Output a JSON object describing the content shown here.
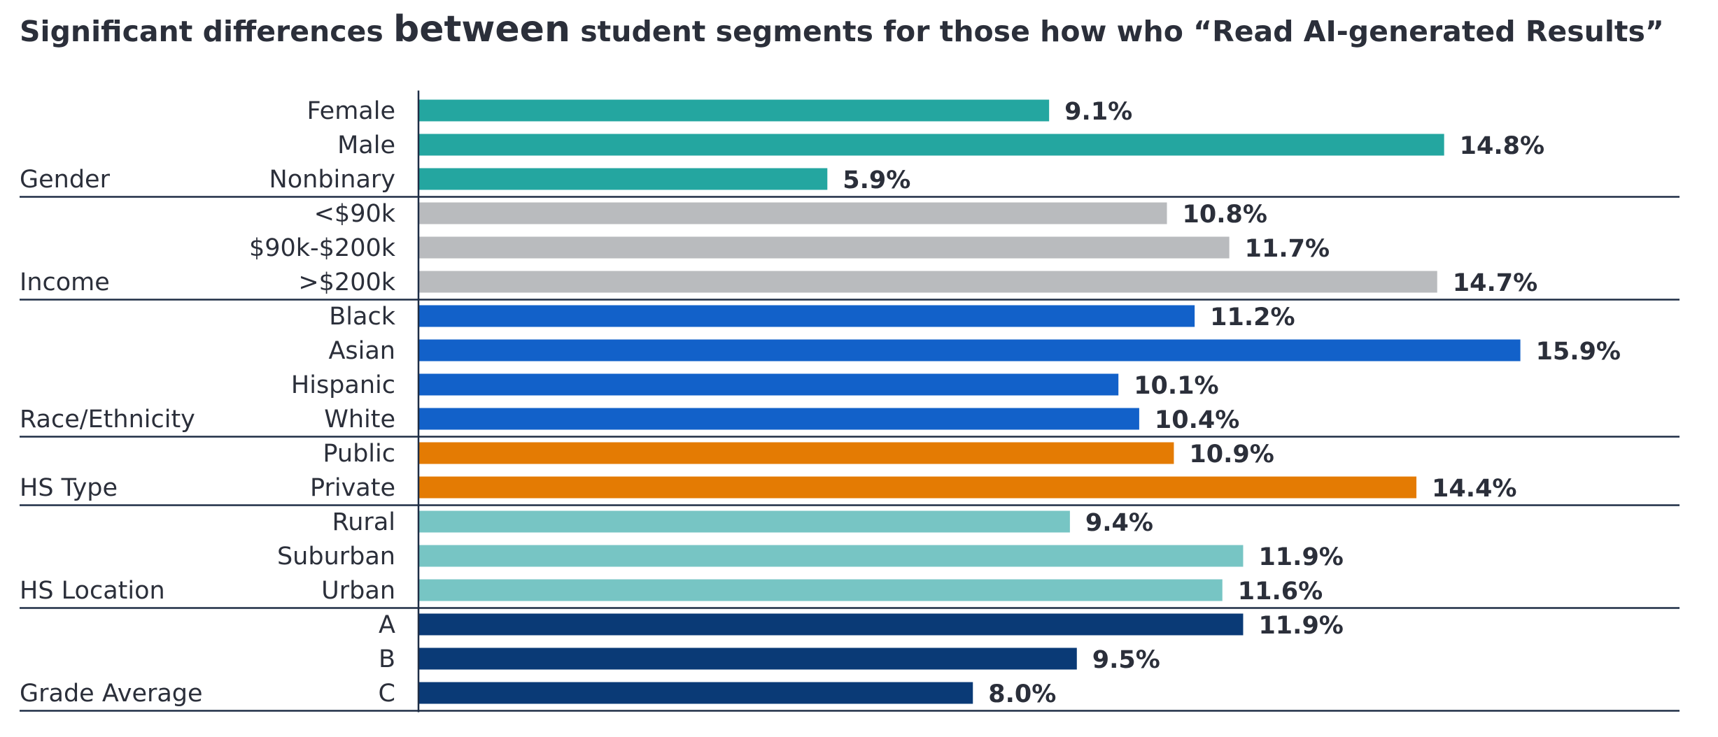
{
  "title": {
    "part1": "Significant differences ",
    "part2": "between",
    "part3": " student segments for those how who  “Read AI-generated Results”"
  },
  "chart_data": {
    "type": "bar",
    "orientation": "horizontal",
    "title": "Significant differences between student segments for those how who  “Read AI-generated Results”",
    "xlim": [
      0,
      16.5
    ],
    "grid": false,
    "value_format": "percent",
    "groups": [
      {
        "name": "Gender",
        "color": "#24a6a0",
        "categories": [
          "Female",
          "Male",
          "Nonbinary"
        ],
        "values": [
          9.1,
          14.8,
          5.9
        ],
        "labels": [
          "9.1%",
          "14.8%",
          "5.9%"
        ]
      },
      {
        "name": "Income",
        "color": "#b9bbbe",
        "categories": [
          "<$90k",
          "$90k-$200k",
          ">$200k"
        ],
        "values": [
          10.8,
          11.7,
          14.7
        ],
        "labels": [
          "10.8%",
          "11.7%",
          "14.7%"
        ]
      },
      {
        "name": "Race/Ethnicity",
        "color": "#1261c9",
        "categories": [
          "Black",
          "Asian",
          "Hispanic",
          "White"
        ],
        "values": [
          11.2,
          15.9,
          10.1,
          10.4
        ],
        "labels": [
          "11.2%",
          "15.9%",
          "10.1%",
          "10.4%"
        ]
      },
      {
        "name": "HS Type",
        "color": "#e47b03",
        "categories": [
          "Public",
          "Private"
        ],
        "values": [
          10.9,
          14.4
        ],
        "labels": [
          "10.9%",
          "14.4%"
        ]
      },
      {
        "name": "HS Location",
        "color": "#77c5c4",
        "categories": [
          "Rural",
          "Suburban",
          "Urban"
        ],
        "values": [
          9.4,
          11.9,
          11.6
        ],
        "labels": [
          "9.4%",
          "11.9%",
          "11.6%"
        ]
      },
      {
        "name": "Grade Average",
        "color": "#0a3a76",
        "categories": [
          "A",
          "B",
          "C"
        ],
        "values": [
          11.9,
          9.5,
          8.0
        ],
        "labels": [
          "11.9%",
          "9.5%",
          "8.0%"
        ]
      }
    ]
  }
}
